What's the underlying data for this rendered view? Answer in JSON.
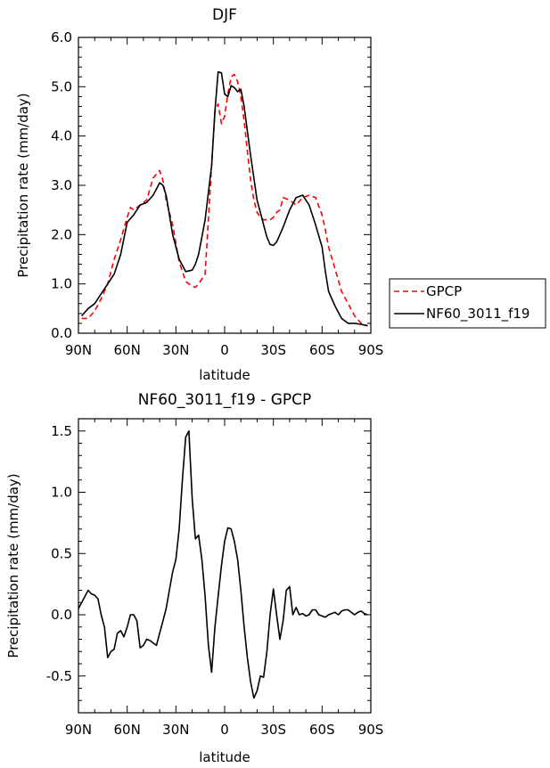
{
  "chart_data": [
    {
      "type": "line",
      "title": "DJF",
      "xlabel": "latitude",
      "ylabel": "Precipitation rate (mm/day)",
      "xlim": [
        -90,
        90
      ],
      "ylim": [
        0,
        6
      ],
      "x_ticks": [
        -90,
        -60,
        -30,
        0,
        30,
        60,
        90
      ],
      "x_tick_labels": [
        "90N",
        "60N",
        "30N",
        "0",
        "30S",
        "60S",
        "90S"
      ],
      "y_ticks": [
        0,
        1,
        2,
        3,
        4,
        5,
        6
      ],
      "y_tick_labels": [
        "0.0",
        "1.0",
        "2.0",
        "3.0",
        "4.0",
        "5.0",
        "6.0"
      ],
      "legend_position": "outside-right",
      "series": [
        {
          "name": "GPCP",
          "color": "#ff0000",
          "dash": "dashed",
          "x": [
            -88,
            -84,
            -80,
            -76,
            -72,
            -68,
            -64,
            -60,
            -58,
            -56,
            -52,
            -48,
            -44,
            -40,
            -38,
            -36,
            -32,
            -28,
            -24,
            -20,
            -18,
            -16,
            -12,
            -8,
            -6,
            -4,
            -2,
            0,
            2,
            4,
            6,
            8,
            10,
            12,
            14,
            16,
            18,
            20,
            22,
            24,
            26,
            28,
            30,
            32,
            34,
            36,
            40,
            44,
            48,
            52,
            56,
            60,
            62,
            64,
            68,
            72,
            76,
            80,
            84,
            88
          ],
          "y": [
            0.3,
            0.3,
            0.45,
            0.7,
            1.0,
            1.5,
            1.9,
            2.35,
            2.55,
            2.5,
            2.6,
            2.7,
            3.15,
            3.3,
            3.1,
            2.7,
            2.2,
            1.45,
            1.05,
            0.95,
            0.93,
            1.0,
            1.2,
            3.4,
            4.5,
            4.65,
            4.25,
            4.4,
            4.85,
            5.2,
            5.25,
            5.1,
            4.8,
            4.3,
            3.7,
            3.1,
            2.7,
            2.45,
            2.35,
            2.3,
            2.3,
            2.3,
            2.35,
            2.45,
            2.5,
            2.75,
            2.7,
            2.6,
            2.75,
            2.8,
            2.75,
            2.4,
            2.1,
            1.75,
            1.3,
            0.85,
            0.6,
            0.35,
            0.2,
            0.15
          ]
        },
        {
          "name": "NF60_3011_f19",
          "color": "#000000",
          "dash": "solid",
          "x": [
            -88,
            -84,
            -80,
            -76,
            -72,
            -68,
            -64,
            -60,
            -56,
            -52,
            -48,
            -44,
            -40,
            -38,
            -36,
            -32,
            -28,
            -24,
            -20,
            -18,
            -16,
            -12,
            -8,
            -6,
            -4,
            -2,
            0,
            2,
            4,
            6,
            8,
            10,
            12,
            14,
            16,
            18,
            20,
            22,
            24,
            26,
            28,
            30,
            32,
            34,
            36,
            40,
            44,
            48,
            52,
            56,
            60,
            62,
            64,
            68,
            72,
            76,
            80,
            84,
            88
          ],
          "y": [
            0.35,
            0.5,
            0.6,
            0.8,
            1.0,
            1.2,
            1.6,
            2.25,
            2.4,
            2.6,
            2.65,
            2.8,
            3.05,
            3.0,
            2.8,
            2.0,
            1.5,
            1.25,
            1.28,
            1.4,
            1.6,
            2.3,
            3.4,
            4.5,
            5.3,
            5.28,
            4.85,
            4.8,
            5.02,
            4.98,
            4.9,
            4.95,
            4.6,
            4.1,
            3.6,
            3.15,
            2.7,
            2.45,
            2.2,
            1.95,
            1.8,
            1.78,
            1.85,
            2.0,
            2.15,
            2.5,
            2.75,
            2.8,
            2.6,
            2.2,
            1.75,
            1.25,
            0.85,
            0.55,
            0.3,
            0.2,
            0.2,
            0.18,
            0.15
          ]
        }
      ]
    },
    {
      "type": "line",
      "title": "NF60_3011_f19 - GPCP",
      "xlabel": "latitude",
      "ylabel": "Precipitation rate (mm/day)",
      "xlim": [
        -90,
        90
      ],
      "ylim": [
        -0.8,
        1.6
      ],
      "x_ticks": [
        -90,
        -60,
        -30,
        0,
        30,
        60,
        90
      ],
      "x_tick_labels": [
        "90N",
        "60N",
        "30N",
        "0",
        "30S",
        "60S",
        "90S"
      ],
      "y_ticks": [
        -0.5,
        0.0,
        0.5,
        1.0,
        1.5
      ],
      "y_tick_labels": [
        "-0.5",
        "0.0",
        "0.5",
        "1.0",
        "1.5"
      ],
      "series": [
        {
          "name": "",
          "color": "#000000",
          "dash": "solid",
          "x": [
            -90,
            -88,
            -86,
            -84,
            -82,
            -80,
            -78,
            -76,
            -74,
            -72,
            -70,
            -68,
            -66,
            -64,
            -62,
            -60,
            -58,
            -56,
            -54,
            -52,
            -50,
            -48,
            -46,
            -44,
            -42,
            -40,
            -38,
            -36,
            -34,
            -32,
            -30,
            -28,
            -26,
            -24,
            -22,
            -20,
            -18,
            -16,
            -14,
            -12,
            -10,
            -8,
            -6,
            -4,
            -2,
            0,
            2,
            4,
            6,
            8,
            10,
            12,
            14,
            16,
            18,
            20,
            22,
            24,
            26,
            28,
            30,
            32,
            34,
            36,
            38,
            40,
            42,
            44,
            46,
            48,
            50,
            52,
            54,
            56,
            58,
            60,
            62,
            64,
            66,
            68,
            70,
            72,
            74,
            76,
            78,
            80,
            82,
            84,
            86,
            88
          ],
          "y": [
            0.05,
            0.1,
            0.15,
            0.2,
            0.17,
            0.16,
            0.13,
            0.0,
            -0.1,
            -0.35,
            -0.3,
            -0.28,
            -0.15,
            -0.13,
            -0.18,
            -0.1,
            0.0,
            0.0,
            -0.05,
            -0.27,
            -0.25,
            -0.2,
            -0.21,
            -0.23,
            -0.25,
            -0.15,
            -0.05,
            0.05,
            0.2,
            0.35,
            0.45,
            0.7,
            1.1,
            1.45,
            1.5,
            0.95,
            0.62,
            0.65,
            0.45,
            0.15,
            -0.25,
            -0.47,
            -0.1,
            0.15,
            0.4,
            0.6,
            0.71,
            0.7,
            0.6,
            0.45,
            0.2,
            -0.1,
            -0.35,
            -0.55,
            -0.68,
            -0.62,
            -0.5,
            -0.51,
            -0.3,
            0.0,
            0.21,
            0.0,
            -0.2,
            -0.05,
            0.2,
            0.23,
            0.0,
            0.06,
            0.0,
            0.01,
            -0.01,
            0.0,
            0.04,
            0.04,
            0.0,
            -0.01,
            -0.02,
            0.0,
            0.01,
            0.02,
            0.0,
            0.03,
            0.04,
            0.04,
            0.02,
            0.0,
            0.02,
            0.03,
            0.01,
            0.0
          ]
        }
      ]
    }
  ]
}
